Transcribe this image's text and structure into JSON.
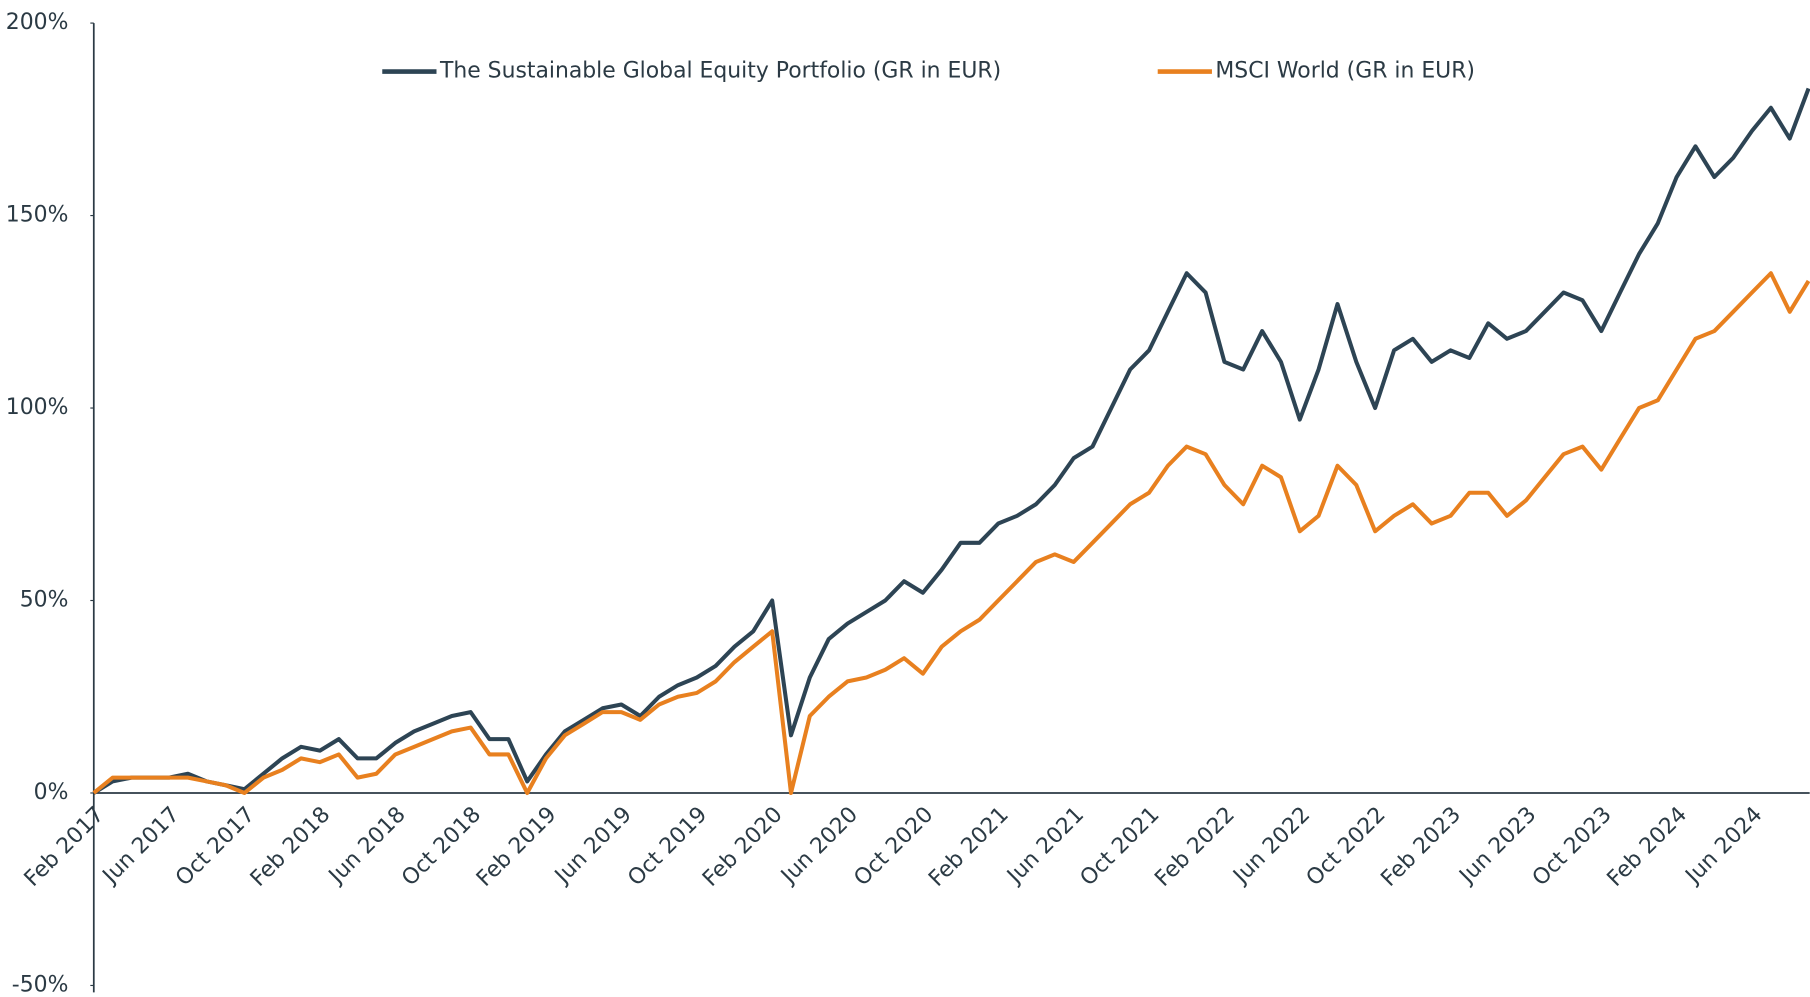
{
  "chart_data": {
    "type": "line",
    "x": [
      "Feb 2017",
      "Mar 2017",
      "Apr 2017",
      "May 2017",
      "Jun 2017",
      "Jul 2017",
      "Aug 2017",
      "Sep 2017",
      "Oct 2017",
      "Nov 2017",
      "Dec 2017",
      "Jan 2018",
      "Feb 2018",
      "Mar 2018",
      "Apr 2018",
      "May 2018",
      "Jun 2018",
      "Jul 2018",
      "Aug 2018",
      "Sep 2018",
      "Oct 2018",
      "Nov 2018",
      "Dec 2018",
      "Jan 2019",
      "Feb 2019",
      "Mar 2019",
      "Apr 2019",
      "May 2019",
      "Jun 2019",
      "Jul 2019",
      "Aug 2019",
      "Sep 2019",
      "Oct 2019",
      "Nov 2019",
      "Dec 2019",
      "Jan 2020",
      "Feb 2020",
      "Mar 2020",
      "Apr 2020",
      "May 2020",
      "Jun 2020",
      "Jul 2020",
      "Aug 2020",
      "Sep 2020",
      "Oct 2020",
      "Nov 2020",
      "Dec 2020",
      "Jan 2021",
      "Feb 2021",
      "Mar 2021",
      "Apr 2021",
      "May 2021",
      "Jun 2021",
      "Jul 2021",
      "Aug 2021",
      "Sep 2021",
      "Oct 2021",
      "Nov 2021",
      "Dec 2021",
      "Jan 2022",
      "Feb 2022",
      "Mar 2022",
      "Apr 2022",
      "May 2022",
      "Jun 2022",
      "Jul 2022",
      "Aug 2022",
      "Sep 2022",
      "Oct 2022",
      "Nov 2022",
      "Dec 2022",
      "Jan 2023",
      "Feb 2023",
      "Mar 2023",
      "Apr 2023",
      "May 2023",
      "Jun 2023",
      "Jul 2023",
      "Aug 2023",
      "Sep 2023",
      "Oct 2023",
      "Nov 2023",
      "Dec 2023",
      "Jan 2024",
      "Feb 2024",
      "Mar 2024",
      "Apr 2024",
      "May 2024",
      "Jun 2024",
      "Jul 2024",
      "Aug 2024",
      "Sep 2024"
    ],
    "xticks": [
      "Feb 2017",
      "Jun 2017",
      "Oct 2017",
      "Feb 2018",
      "Jun 2018",
      "Oct 2018",
      "Feb 2019",
      "Jun 2019",
      "Oct 2019",
      "Feb 2020",
      "Jun 2020",
      "Oct 2020",
      "Feb 2021",
      "Jun 2021",
      "Oct 2021",
      "Feb 2022",
      "Jun 2022",
      "Oct 2022",
      "Feb 2023",
      "Jun 2023",
      "Oct 2023",
      "Feb 2024",
      "Jun 2024"
    ],
    "series": [
      {
        "name": "The Sustainable Global Equity Portfolio (GR in EUR)",
        "color": "#2d4454",
        "values": [
          0,
          3,
          4,
          4,
          4,
          5,
          3,
          2,
          1,
          5,
          9,
          12,
          11,
          14,
          9,
          9,
          13,
          16,
          18,
          20,
          21,
          14,
          14,
          3,
          10,
          16,
          19,
          22,
          23,
          20,
          25,
          28,
          30,
          33,
          38,
          42,
          50,
          15,
          30,
          40,
          44,
          47,
          50,
          55,
          52,
          58,
          65,
          65,
          70,
          72,
          75,
          80,
          87,
          90,
          100,
          110,
          115,
          125,
          135,
          130,
          112,
          110,
          120,
          112,
          97,
          110,
          127,
          112,
          100,
          115,
          118,
          112,
          115,
          113,
          122,
          118,
          120,
          125,
          130,
          128,
          120,
          130,
          140,
          148,
          160,
          168,
          160,
          165,
          172,
          178,
          170,
          183
        ]
      },
      {
        "name": "MSCI World (GR in EUR)",
        "color": "#e8801f",
        "values": [
          0,
          4,
          4,
          4,
          4,
          4,
          3,
          2,
          0,
          4,
          6,
          9,
          8,
          10,
          4,
          5,
          10,
          12,
          14,
          16,
          17,
          10,
          10,
          0,
          9,
          15,
          18,
          21,
          21,
          19,
          23,
          25,
          26,
          29,
          34,
          38,
          42,
          0,
          20,
          25,
          29,
          30,
          32,
          35,
          31,
          38,
          42,
          45,
          50,
          55,
          60,
          62,
          60,
          65,
          70,
          75,
          78,
          85,
          90,
          88,
          80,
          75,
          85,
          82,
          68,
          72,
          85,
          80,
          68,
          72,
          75,
          70,
          72,
          78,
          78,
          72,
          76,
          82,
          88,
          90,
          84,
          92,
          100,
          102,
          110,
          118,
          120,
          125,
          130,
          135,
          125,
          133
        ]
      }
    ],
    "ylim": [
      -50,
      200
    ],
    "yticks": [
      {
        "value": -50,
        "label": "-50%"
      },
      {
        "value": 0,
        "label": "0%"
      },
      {
        "value": 50,
        "label": "50%"
      },
      {
        "value": 100,
        "label": "100%"
      },
      {
        "value": 150,
        "label": "150%"
      },
      {
        "value": 200,
        "label": "200%"
      }
    ],
    "grid": false
  }
}
